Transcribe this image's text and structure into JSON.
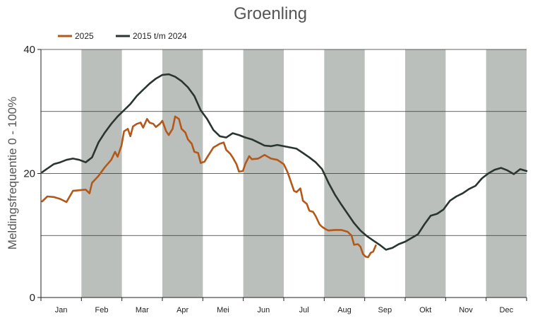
{
  "chart_data": {
    "type": "line",
    "title": "Groenling",
    "ylabel": "Meldingsfrequentie 0 - 100%",
    "xlabel": "",
    "ylim": [
      0,
      40
    ],
    "yticks": [
      0,
      20,
      40
    ],
    "gridlines_y": [
      10,
      20,
      30
    ],
    "legend_position": "top-left",
    "months": [
      "Jan",
      "Feb",
      "Mar",
      "Apr",
      "Mei",
      "Jun",
      "Jul",
      "Aug",
      "Sep",
      "Okt",
      "Nov",
      "Dec"
    ],
    "shaded_months": [
      "Feb",
      "Apr",
      "Jun",
      "Aug",
      "Okt",
      "Dec"
    ],
    "shade_color": "#bbbfbb",
    "series": [
      {
        "name": "2015 t/m 2024",
        "color": "#2b3530",
        "points": [
          [
            1,
            20.2
          ],
          [
            5,
            20.8
          ],
          [
            10,
            21.5
          ],
          [
            15,
            21.8
          ],
          [
            20,
            22.2
          ],
          [
            25,
            22.4
          ],
          [
            30,
            22.2
          ],
          [
            35,
            21.8
          ],
          [
            40,
            22.6
          ],
          [
            45,
            25.0
          ],
          [
            50,
            26.6
          ],
          [
            55,
            28.0
          ],
          [
            60,
            29.2
          ],
          [
            65,
            30.2
          ],
          [
            70,
            31.2
          ],
          [
            75,
            32.5
          ],
          [
            80,
            33.5
          ],
          [
            85,
            34.5
          ],
          [
            90,
            35.3
          ],
          [
            95,
            35.9
          ],
          [
            100,
            36.0
          ],
          [
            105,
            35.6
          ],
          [
            110,
            34.9
          ],
          [
            115,
            33.9
          ],
          [
            120,
            32.5
          ],
          [
            125,
            30.2
          ],
          [
            130,
            28.8
          ],
          [
            135,
            27.0
          ],
          [
            140,
            26.0
          ],
          [
            145,
            25.8
          ],
          [
            150,
            26.5
          ],
          [
            155,
            26.2
          ],
          [
            160,
            25.8
          ],
          [
            165,
            25.5
          ],
          [
            170,
            25.0
          ],
          [
            175,
            24.5
          ],
          [
            180,
            24.4
          ],
          [
            185,
            24.6
          ],
          [
            190,
            24.4
          ],
          [
            195,
            24.2
          ],
          [
            200,
            24.0
          ],
          [
            205,
            23.3
          ],
          [
            210,
            22.6
          ],
          [
            215,
            21.8
          ],
          [
            220,
            20.7
          ],
          [
            225,
            18.5
          ],
          [
            230,
            16.6
          ],
          [
            235,
            15.0
          ],
          [
            240,
            13.5
          ],
          [
            245,
            12.0
          ],
          [
            250,
            10.8
          ],
          [
            255,
            9.9
          ],
          [
            260,
            9.2
          ],
          [
            265,
            8.5
          ],
          [
            270,
            7.7
          ],
          [
            275,
            8.0
          ],
          [
            280,
            8.6
          ],
          [
            285,
            9.0
          ],
          [
            290,
            9.6
          ],
          [
            295,
            10.2
          ],
          [
            300,
            11.8
          ],
          [
            305,
            13.2
          ],
          [
            310,
            13.5
          ],
          [
            315,
            14.2
          ],
          [
            320,
            15.6
          ],
          [
            325,
            16.3
          ],
          [
            330,
            16.8
          ],
          [
            335,
            17.5
          ],
          [
            340,
            18.0
          ],
          [
            345,
            19.2
          ],
          [
            350,
            20.0
          ],
          [
            355,
            20.6
          ],
          [
            360,
            20.9
          ],
          [
            365,
            20.5
          ],
          [
            370,
            19.9
          ],
          [
            375,
            20.7
          ],
          [
            380,
            20.4
          ]
        ]
      },
      {
        "name": "2025",
        "color": "#b4581a",
        "points": [
          [
            1,
            15.5
          ],
          [
            5,
            16.3
          ],
          [
            10,
            16.2
          ],
          [
            15,
            15.9
          ],
          [
            20,
            15.4
          ],
          [
            25,
            17.2
          ],
          [
            30,
            17.3
          ],
          [
            35,
            17.4
          ],
          [
            38,
            16.8
          ],
          [
            40,
            18.5
          ],
          [
            45,
            19.6
          ],
          [
            50,
            21.0
          ],
          [
            55,
            22.2
          ],
          [
            58,
            23.5
          ],
          [
            60,
            22.7
          ],
          [
            63,
            24.5
          ],
          [
            65,
            26.8
          ],
          [
            68,
            27.2
          ],
          [
            70,
            26.0
          ],
          [
            72,
            27.6
          ],
          [
            75,
            28.0
          ],
          [
            78,
            28.2
          ],
          [
            80,
            27.4
          ],
          [
            83,
            28.8
          ],
          [
            85,
            28.2
          ],
          [
            88,
            28.0
          ],
          [
            90,
            27.5
          ],
          [
            93,
            28.0
          ],
          [
            95,
            28.5
          ],
          [
            98,
            26.8
          ],
          [
            100,
            26.2
          ],
          [
            103,
            27.2
          ],
          [
            105,
            29.2
          ],
          [
            108,
            28.8
          ],
          [
            110,
            27.2
          ],
          [
            113,
            26.6
          ],
          [
            115,
            25.5
          ],
          [
            118,
            24.8
          ],
          [
            120,
            23.5
          ],
          [
            123,
            23.3
          ],
          [
            125,
            21.7
          ],
          [
            128,
            21.9
          ],
          [
            130,
            22.6
          ],
          [
            135,
            24.2
          ],
          [
            140,
            24.8
          ],
          [
            143,
            25.0
          ],
          [
            145,
            23.8
          ],
          [
            148,
            23.2
          ],
          [
            150,
            22.6
          ],
          [
            153,
            21.5
          ],
          [
            155,
            20.3
          ],
          [
            158,
            20.4
          ],
          [
            160,
            21.6
          ],
          [
            163,
            22.8
          ],
          [
            165,
            22.3
          ],
          [
            170,
            22.4
          ],
          [
            175,
            23.0
          ],
          [
            180,
            22.4
          ],
          [
            185,
            22.2
          ],
          [
            190,
            21.5
          ],
          [
            193,
            20.2
          ],
          [
            195,
            19.0
          ],
          [
            198,
            17.2
          ],
          [
            200,
            17.0
          ],
          [
            203,
            17.6
          ],
          [
            205,
            15.6
          ],
          [
            208,
            15.1
          ],
          [
            210,
            14.0
          ],
          [
            213,
            13.8
          ],
          [
            215,
            13.1
          ],
          [
            218,
            11.8
          ],
          [
            220,
            11.4
          ],
          [
            223,
            11.0
          ],
          [
            225,
            10.8
          ],
          [
            230,
            10.9
          ],
          [
            235,
            10.9
          ],
          [
            240,
            10.6
          ],
          [
            243,
            10.0
          ],
          [
            245,
            8.5
          ],
          [
            248,
            8.6
          ],
          [
            250,
            8.2
          ],
          [
            252,
            7.0
          ],
          [
            254,
            6.6
          ],
          [
            256,
            6.5
          ],
          [
            258,
            7.2
          ],
          [
            260,
            7.4
          ],
          [
            262,
            8.4
          ]
        ]
      }
    ]
  }
}
